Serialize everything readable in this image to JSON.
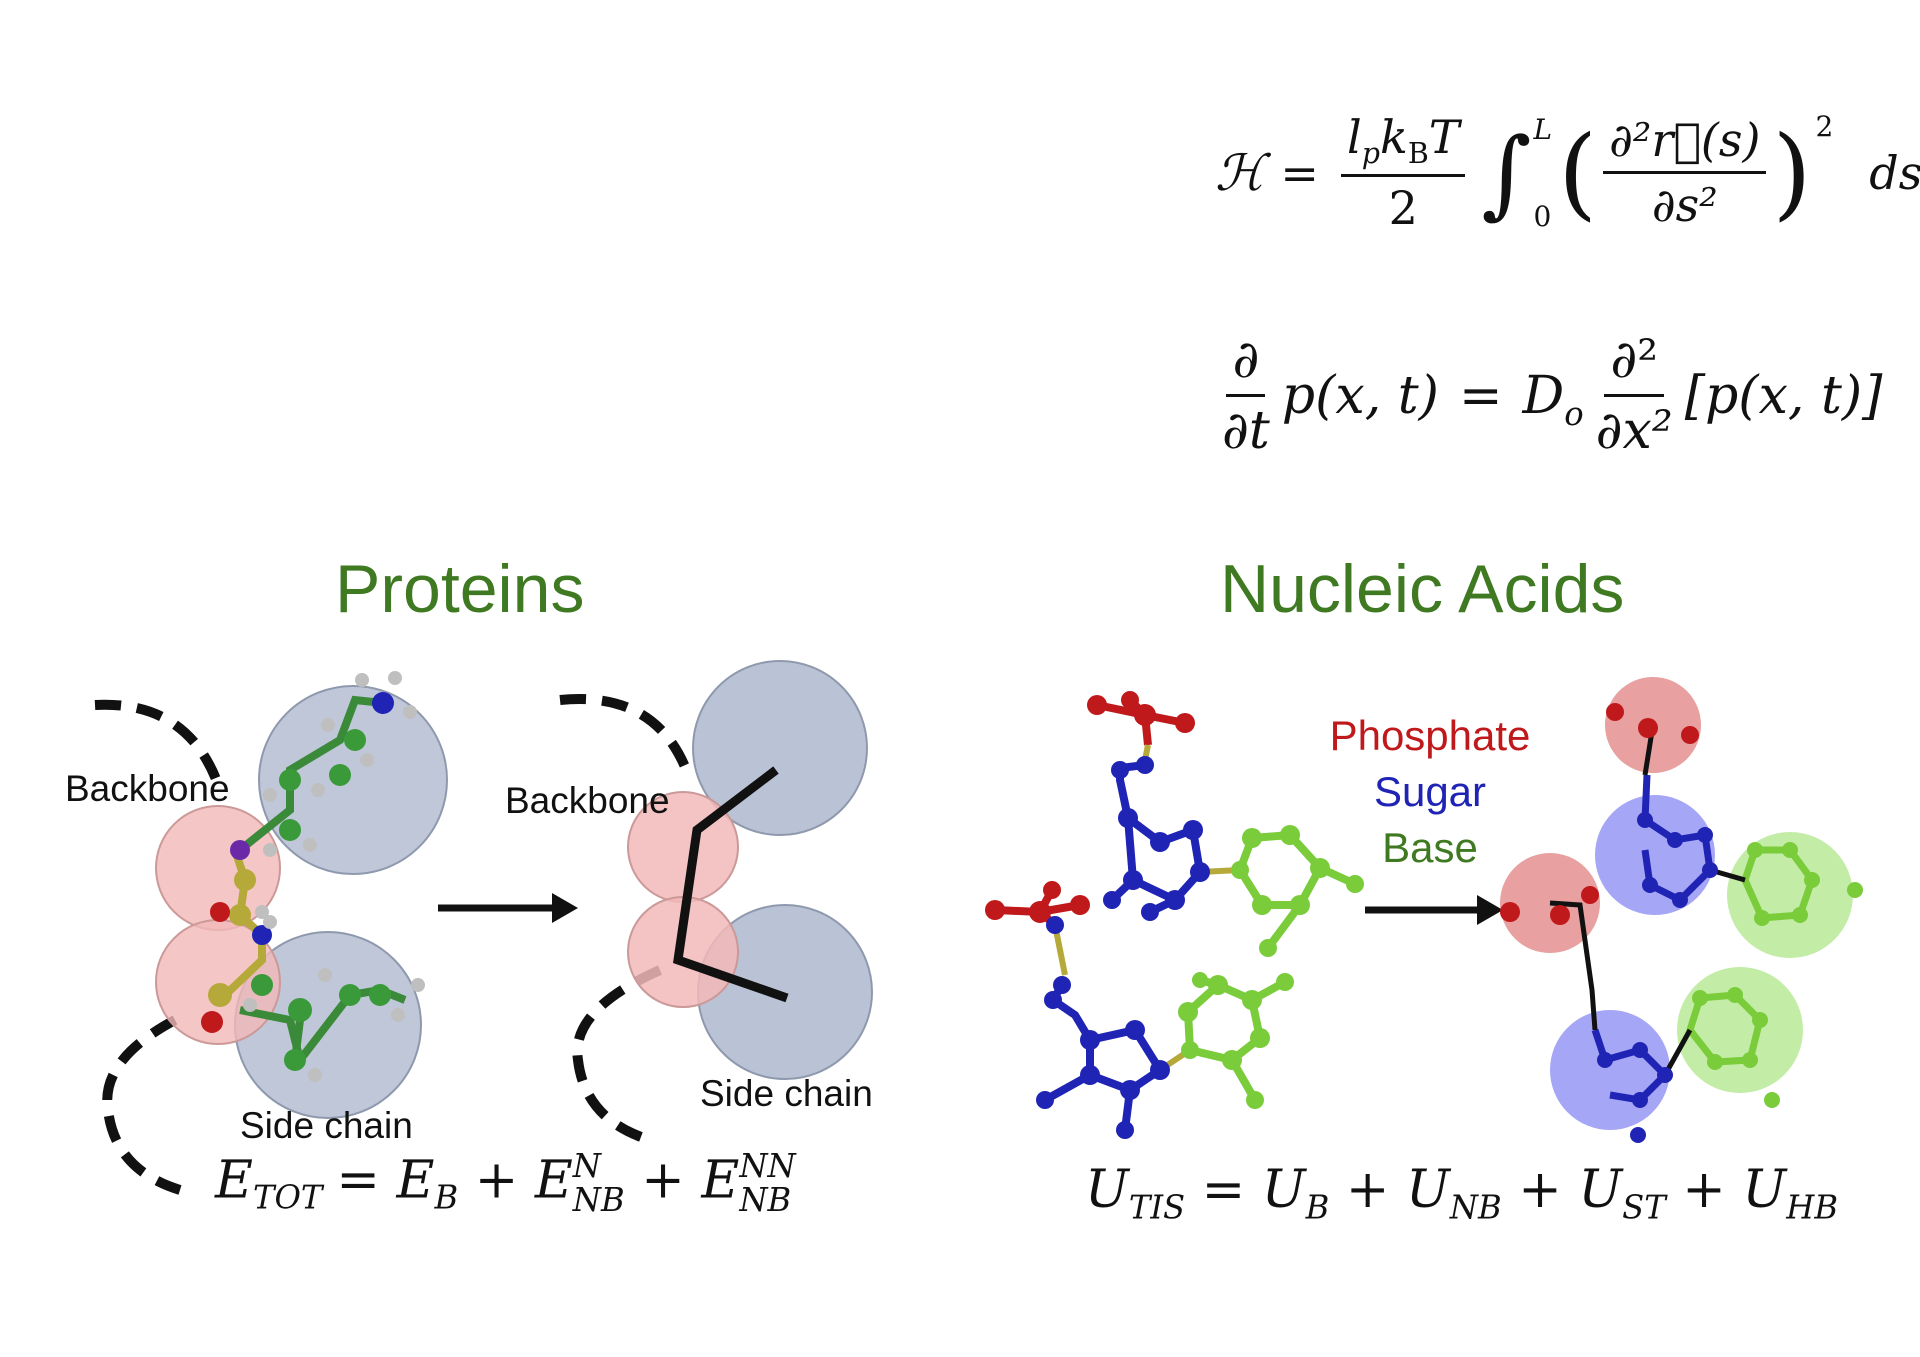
{
  "equations": {
    "hamiltonian": {
      "lhs": "ℋ",
      "eq": "=",
      "coef_num": "l",
      "coef_num_sub": "p",
      "coef_num_k": "k",
      "coef_num_k_sub": "B",
      "coef_num_T": "T",
      "coef_den": "2",
      "int_upper": "L",
      "int_lower": "0",
      "deriv_num": "∂²r⃗(s)",
      "deriv_den": "∂s²",
      "power": "2",
      "ds": "ds"
    },
    "diffusion": {
      "d_num": "∂",
      "d_den": "∂t",
      "term": "p(x, t)",
      "eq": "=",
      "D": "D",
      "D_sub": "o",
      "d2_num": "∂²",
      "d2_den": "∂x²",
      "bracket": "[p(x, t)]"
    },
    "protein_energy": {
      "E": "E",
      "tot_sub": "TOT",
      "eq": "= ",
      "EB_sub": "B",
      "plus1": " + ",
      "ENB_sup": "N",
      "ENB_sub": "NB",
      "plus2": " + ",
      "ENNB_sup": "NN",
      "ENNB_sub": "NB"
    },
    "tis_energy": {
      "U": "U",
      "tis_sub": "TIS",
      "eq": " = ",
      "UB_sub": "B",
      "plus1": " + ",
      "UNB_sub": "NB",
      "plus2": " + ",
      "UST_sub": "ST",
      "plus3": " + ",
      "UHB_sub": "HB"
    }
  },
  "headings": {
    "proteins": "Proteins",
    "nucleic_acids": "Nucleic Acids"
  },
  "labels": {
    "backbone_left": "Backbone",
    "backbone_right": "Backbone",
    "side_chain_left": "Side chain",
    "side_chain_right": "Side chain"
  },
  "legend": {
    "phosphate": "Phosphate",
    "sugar": "Sugar",
    "base": "Base"
  },
  "colors": {
    "heading": "#3f7a22",
    "phosphate": "#c0191c",
    "sugar": "#1f24b5",
    "base": "#3f7a22",
    "backbone_bead": "#f2b8b8",
    "sidechain_bead": "#a9b4cc",
    "sugar_bead": "#6b6bf0",
    "base_bead": "#9be06a"
  }
}
